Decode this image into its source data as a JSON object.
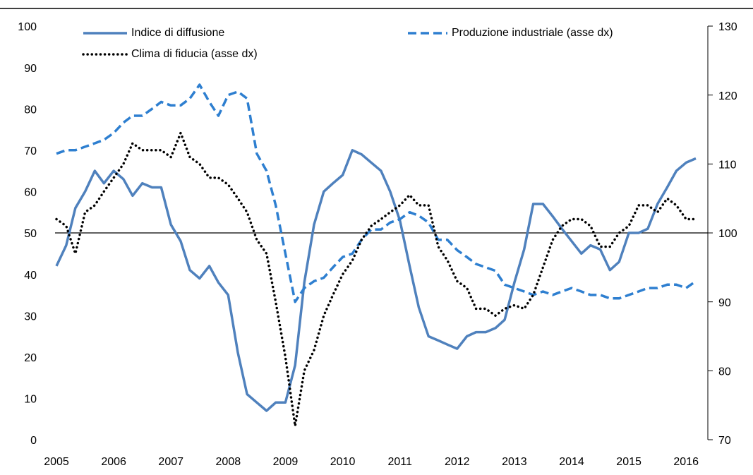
{
  "chart_data": {
    "type": "line",
    "x": [
      2005.0,
      2005.17,
      2005.33,
      2005.5,
      2005.67,
      2005.83,
      2006.0,
      2006.17,
      2006.33,
      2006.5,
      2006.67,
      2006.83,
      2007.0,
      2007.17,
      2007.33,
      2007.5,
      2007.67,
      2007.83,
      2008.0,
      2008.17,
      2008.33,
      2008.5,
      2008.67,
      2008.83,
      2009.0,
      2009.17,
      2009.33,
      2009.5,
      2009.67,
      2009.83,
      2010.0,
      2010.17,
      2010.33,
      2010.5,
      2010.67,
      2010.83,
      2011.0,
      2011.17,
      2011.33,
      2011.5,
      2011.67,
      2011.83,
      2012.0,
      2012.17,
      2012.33,
      2012.5,
      2012.67,
      2012.83,
      2013.0,
      2013.17,
      2013.33,
      2013.5,
      2013.67,
      2013.83,
      2014.0,
      2014.17,
      2014.33,
      2014.5,
      2014.67,
      2014.83,
      2015.0,
      2015.17,
      2015.33,
      2015.5,
      2015.67,
      2015.83,
      2016.0,
      2016.17
    ],
    "series": [
      {
        "name": "Indice di diffusione",
        "color": "#4f81bd",
        "style": "solid",
        "values": [
          42,
          47,
          56,
          60,
          65,
          62,
          65,
          63,
          59,
          62,
          61,
          61,
          52,
          48,
          41,
          39,
          42,
          38,
          35,
          21,
          11,
          9,
          7,
          9,
          9,
          18,
          38,
          52,
          60,
          62,
          64,
          70,
          69,
          67,
          65,
          60,
          53,
          42,
          32,
          25,
          24,
          23,
          22,
          25,
          26,
          26,
          27,
          29,
          38,
          46,
          57,
          57,
          54,
          51,
          48,
          45,
          47,
          46,
          41,
          43,
          50,
          50,
          51,
          57,
          61,
          65,
          67,
          68
        ]
      },
      {
        "name": "Produzione industriale (asse dx)",
        "color": "#2e7fd0",
        "style": "dashed",
        "axis": "y2",
        "values": [
          111.5,
          112,
          112,
          112.5,
          113,
          113.5,
          114.5,
          116,
          117,
          117,
          118,
          119,
          118.5,
          118.5,
          119.5,
          121.5,
          119,
          117,
          120,
          120.5,
          119.5,
          111.5,
          109,
          104,
          97,
          90,
          92,
          93,
          93.5,
          95,
          96.5,
          97,
          99,
          100.5,
          100.5,
          101.5,
          102,
          103,
          102.5,
          101.5,
          99,
          99,
          97.5,
          96.5,
          95.5,
          95,
          94.5,
          92.5,
          92,
          91.5,
          91,
          91.5,
          91,
          91.5,
          92,
          91.5,
          91,
          91,
          90.5,
          90.5,
          91,
          91.5,
          92,
          92,
          92.5,
          92.5,
          92,
          93
        ]
      },
      {
        "name": "Clima di fiducia (asse dx)",
        "color": "#000000",
        "style": "dotted",
        "axis": "y2",
        "values": [
          102,
          101,
          97,
          103,
          104,
          106,
          108,
          110,
          113,
          112,
          112,
          112,
          111,
          114.5,
          111,
          110,
          108,
          108,
          107,
          105,
          103,
          99,
          97,
          90,
          82,
          72,
          80,
          83,
          88,
          91,
          94,
          96,
          99,
          101,
          102,
          103,
          104,
          105.5,
          104,
          104,
          98,
          96,
          93,
          92,
          89,
          89,
          88,
          89,
          89.5,
          89,
          91,
          95,
          99,
          101,
          102,
          102,
          101,
          98,
          98,
          100,
          101,
          104,
          104,
          103,
          105,
          104,
          102,
          102
        ]
      }
    ],
    "xlim": [
      2005,
      2016.17
    ],
    "xticks": [
      2005,
      2006,
      2007,
      2008,
      2009,
      2010,
      2011,
      2012,
      2013,
      2014,
      2015,
      2016
    ],
    "ylim": [
      0,
      100
    ],
    "yticks": [
      0,
      10,
      20,
      30,
      40,
      50,
      60,
      70,
      80,
      90,
      100
    ],
    "y2lim": [
      70,
      130
    ],
    "y2ticks": [
      70,
      80,
      90,
      100,
      110,
      120,
      130
    ],
    "reference_line": 50
  }
}
